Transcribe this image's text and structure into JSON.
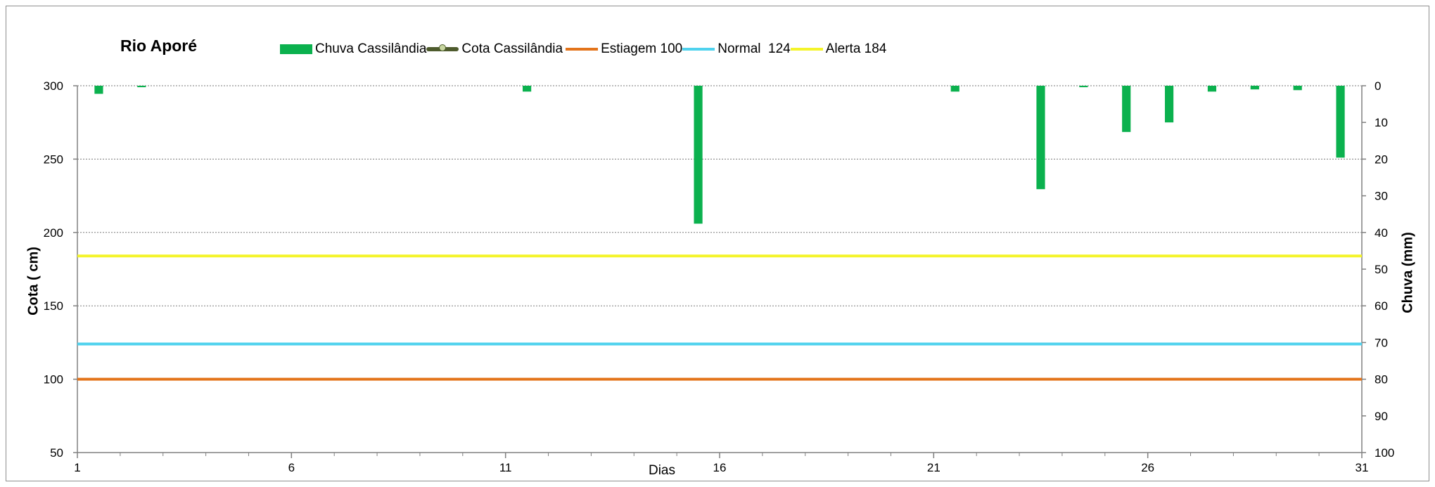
{
  "chart_data": {
    "type": "bar",
    "title": "Rio Aporé",
    "xlabel": "Dias",
    "ylabel_left": "Cota  (  cm)",
    "ylabel_right": "Chuva (mm)",
    "x_ticks": [
      1,
      6,
      11,
      16,
      21,
      26,
      31
    ],
    "x_range": [
      1,
      31
    ],
    "y_left": {
      "range": [
        50,
        300
      ],
      "ticks": [
        50,
        100,
        150,
        200,
        250,
        300
      ]
    },
    "y_right": {
      "range": [
        0,
        100
      ],
      "ticks": [
        0,
        10,
        20,
        30,
        40,
        50,
        60,
        70,
        80,
        90,
        100
      ],
      "inverted": true
    },
    "grid": true,
    "legend_position": "top",
    "legend": [
      {
        "label": "Chuva Cassilândia",
        "kind": "bar",
        "color": "#0bb14e"
      },
      {
        "label": "Cota Cassilândia",
        "kind": "line-marker",
        "color": "#4e5b2d"
      },
      {
        "label": "Estiagem 100",
        "kind": "line",
        "color": "#e3741b"
      },
      {
        "label": "Normal  124",
        "kind": "line",
        "color": "#4fd2ee"
      },
      {
        "label": "Alerta 184",
        "kind": "line",
        "color": "#f4f42a"
      }
    ],
    "series": [
      {
        "name": "Chuva Cassilândia",
        "axis": "right",
        "color": "#0bb14e",
        "points": [
          {
            "x": 1.5,
            "y": 2.2
          },
          {
            "x": 2.5,
            "y": 0.4
          },
          {
            "x": 11.5,
            "y": 1.6
          },
          {
            "x": 15.5,
            "y": 37.6
          },
          {
            "x": 21.5,
            "y": 1.6
          },
          {
            "x": 23.5,
            "y": 28.2
          },
          {
            "x": 24.5,
            "y": 0.4
          },
          {
            "x": 25.5,
            "y": 12.6
          },
          {
            "x": 26.5,
            "y": 10.0
          },
          {
            "x": 27.5,
            "y": 1.6
          },
          {
            "x": 28.5,
            "y": 1.0
          },
          {
            "x": 29.5,
            "y": 1.2
          },
          {
            "x": 30.5,
            "y": 19.6
          }
        ]
      },
      {
        "name": "Estiagem 100",
        "axis": "left",
        "color": "#e3741b",
        "value": 100
      },
      {
        "name": "Normal  124",
        "axis": "left",
        "color": "#4fd2ee",
        "value": 124
      },
      {
        "name": "Alerta 184",
        "axis": "left",
        "color": "#f4f42a",
        "value": 184
      }
    ]
  }
}
